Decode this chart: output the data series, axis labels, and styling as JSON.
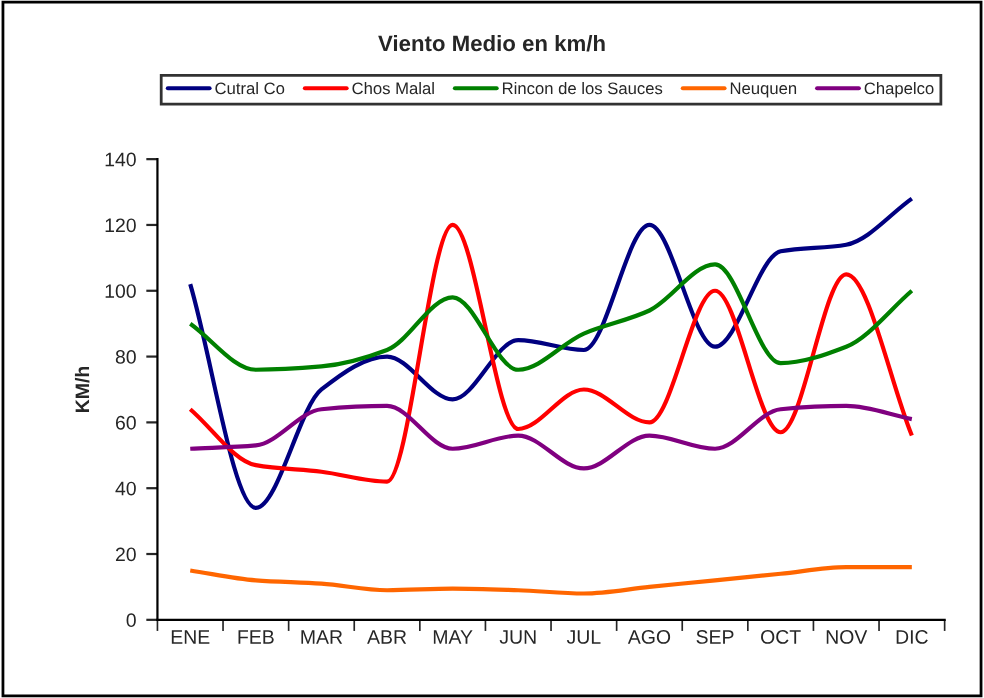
{
  "chart_data": {
    "type": "line",
    "title": "Viento Medio en km/h",
    "ylabel": "KM/h",
    "categories": [
      "ENE",
      "FEB",
      "MAR",
      "ABR",
      "MAY",
      "JUN",
      "JUL",
      "AGO",
      "SEP",
      "OCT",
      "NOV",
      "DIC"
    ],
    "series": [
      {
        "name": "Cutral Co",
        "color": "#000080",
        "values": [
          102,
          34,
          70,
          80,
          67,
          85,
          82,
          120,
          83,
          112,
          114,
          128
        ]
      },
      {
        "name": "Chos Malal",
        "color": "#ff0000",
        "values": [
          64,
          47,
          45,
          42,
          120,
          58,
          70,
          60,
          100,
          57,
          105,
          56
        ]
      },
      {
        "name": "Rincon de los Sauces",
        "color": "#008000",
        "values": [
          90,
          76,
          77,
          82,
          98,
          76,
          87,
          94,
          108,
          78,
          83,
          100
        ]
      },
      {
        "name": "Neuquen",
        "color": "#ff6600",
        "values": [
          15,
          12,
          11,
          9,
          9.5,
          9,
          8,
          10,
          12,
          14,
          16,
          16
        ]
      },
      {
        "name": "Chapelco",
        "color": "#800080",
        "values": [
          52,
          53,
          64,
          65,
          52,
          56,
          46,
          56,
          52,
          64,
          65,
          61
        ]
      }
    ],
    "ylim": [
      0,
      140
    ],
    "yticks": [
      0,
      20,
      40,
      60,
      80,
      100,
      120,
      140
    ],
    "grid": false,
    "legend": "top",
    "marker": "none",
    "line_style": "solid"
  }
}
